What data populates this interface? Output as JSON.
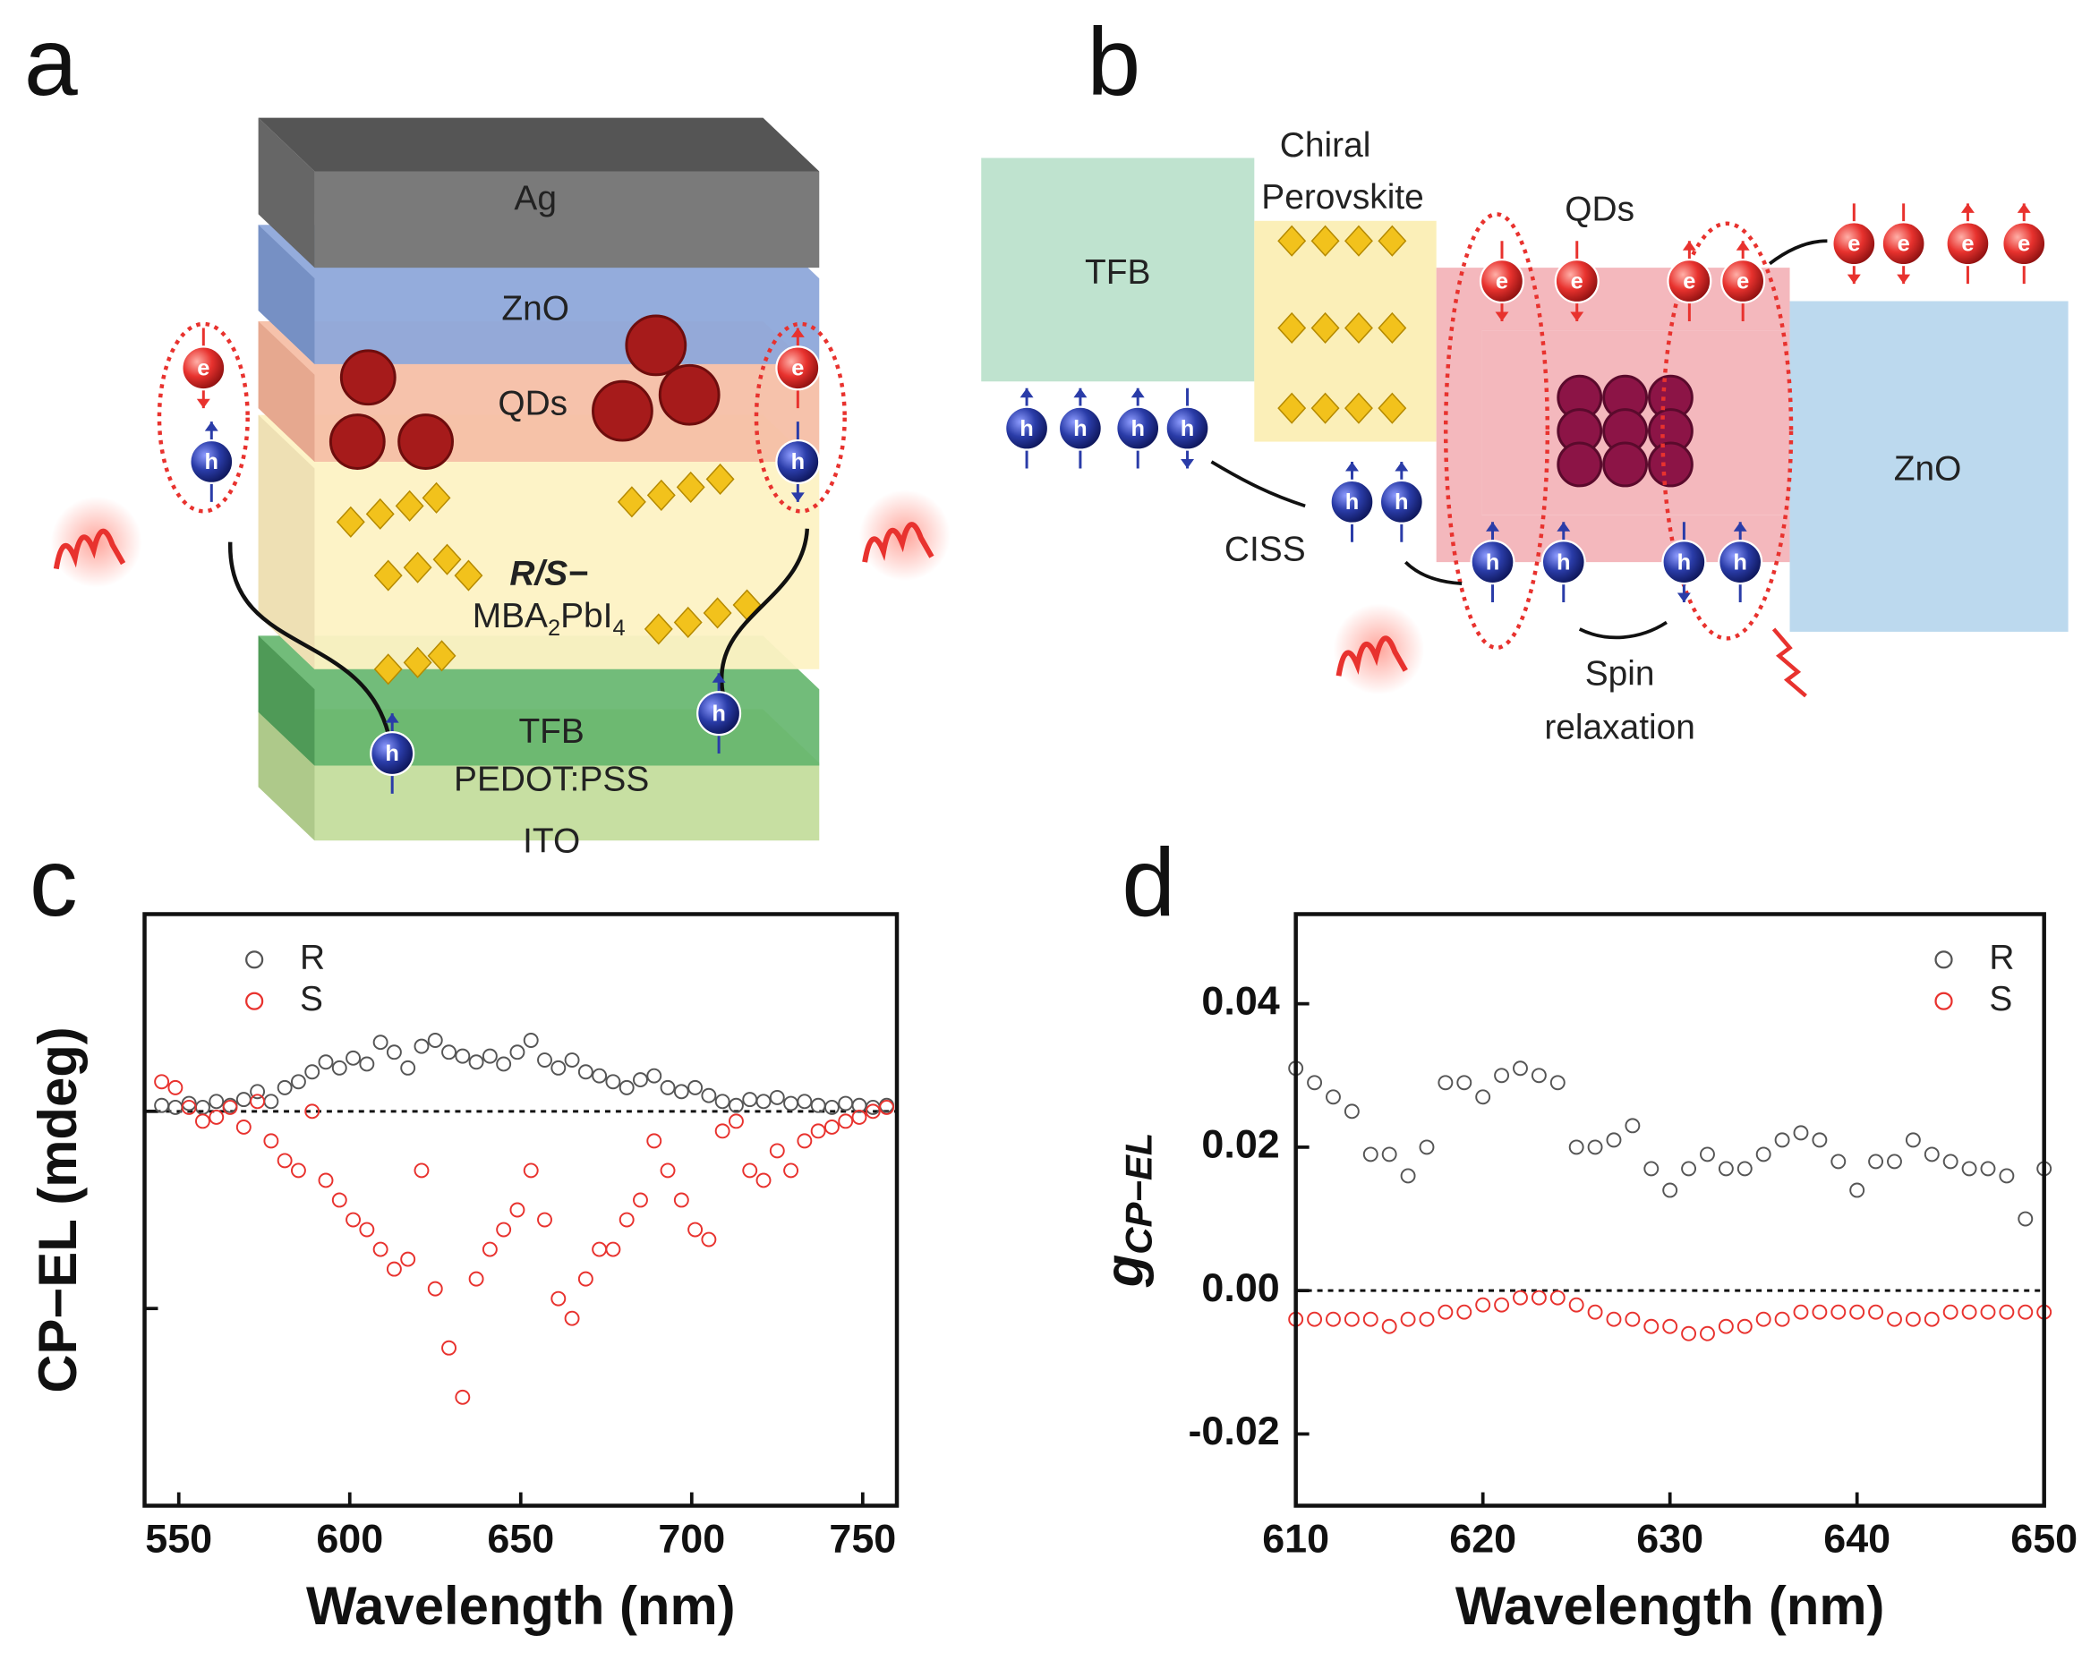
{
  "diagram_a": {
    "panel_label": "a",
    "layers": [
      "Ag",
      "ZnO",
      "QDs",
      "TFB",
      "PEDOT:PSS",
      "ITO"
    ],
    "chiral_label": "R/S−",
    "formula": [
      "MBA",
      "2",
      "PbI",
      "4"
    ],
    "electron_label": "e",
    "hole_label": "h"
  },
  "diagram_b": {
    "panel_label": "b",
    "tfb": "TFB",
    "perovskite": [
      "Chiral",
      "Perovskite"
    ],
    "qds": "QDs",
    "zno": "ZnO",
    "ciss": "CISS",
    "spin": [
      "Spin",
      "relaxation"
    ],
    "electron_label": "e",
    "hole_label": "h"
  },
  "chart_data": [
    {
      "type": "scatter",
      "panel_label": "c",
      "xlabel": "Wavelength (nm)",
      "ylabel": "CP−EL (mdeg)",
      "xlim": [
        540,
        760
      ],
      "xticks": [
        550,
        600,
        650,
        700,
        750
      ],
      "ylim": [
        -2,
        1
      ],
      "yticks": [
        -1,
        0
      ],
      "ytick_labels": false,
      "reference_line": 0,
      "legend": "upper left",
      "x": [
        545,
        549,
        553,
        557,
        561,
        565,
        569,
        573,
        577,
        581,
        585,
        589,
        593,
        597,
        601,
        605,
        609,
        613,
        617,
        621,
        625,
        629,
        633,
        637,
        641,
        645,
        649,
        653,
        657,
        661,
        665,
        669,
        673,
        677,
        681,
        685,
        689,
        693,
        697,
        701,
        705,
        709,
        713,
        717,
        721,
        725,
        729,
        733,
        737,
        741,
        745,
        749,
        753,
        757
      ],
      "series": [
        {
          "name": "R",
          "color": "#555555",
          "values": [
            0.03,
            0.02,
            0.04,
            0.02,
            0.05,
            0.03,
            0.06,
            0.1,
            0.05,
            0.12,
            0.15,
            0.2,
            0.25,
            0.22,
            0.27,
            0.24,
            0.35,
            0.3,
            0.22,
            0.33,
            0.36,
            0.3,
            0.28,
            0.25,
            0.28,
            0.24,
            0.3,
            0.36,
            0.26,
            0.22,
            0.26,
            0.2,
            0.18,
            0.15,
            0.12,
            0.16,
            0.18,
            0.12,
            0.1,
            0.12,
            0.08,
            0.05,
            0.03,
            0.06,
            0.05,
            0.07,
            0.04,
            0.05,
            0.03,
            0.02,
            0.04,
            0.03,
            0.02,
            0.03
          ]
        },
        {
          "name": "S",
          "color": "#e8322e",
          "values": [
            0.15,
            0.12,
            0.02,
            -0.05,
            -0.03,
            0.02,
            -0.08,
            0.05,
            -0.15,
            -0.25,
            -0.3,
            0.0,
            -0.35,
            -0.45,
            -0.55,
            -0.6,
            -0.7,
            -0.8,
            -0.75,
            -0.3,
            -0.9,
            -1.2,
            -1.45,
            -0.85,
            -0.7,
            -0.6,
            -0.5,
            -0.3,
            -0.55,
            -0.95,
            -1.05,
            -0.85,
            -0.7,
            -0.7,
            -0.55,
            -0.45,
            -0.15,
            -0.3,
            -0.45,
            -0.6,
            -0.65,
            -0.1,
            -0.05,
            -0.3,
            -0.35,
            -0.2,
            -0.3,
            -0.15,
            -0.1,
            -0.08,
            -0.05,
            -0.03,
            0.0,
            0.02
          ]
        }
      ]
    },
    {
      "type": "scatter",
      "panel_label": "d",
      "xlabel": "Wavelength (nm)",
      "ylabel": "g",
      "ylabel_sub": "CP−EL",
      "xlim": [
        610,
        650
      ],
      "xticks": [
        610,
        620,
        630,
        640,
        650
      ],
      "ylim": [
        -0.03,
        0.0525
      ],
      "yticks": [
        -0.02,
        {
          "value": 0,
          "label": "0.00"
        },
        0.02,
        0.04
      ],
      "reference_line": 0,
      "legend": "upper right",
      "x": [
        610,
        611,
        612,
        613,
        614,
        615,
        616,
        617,
        618,
        619,
        620,
        621,
        622,
        623,
        624,
        625,
        626,
        627,
        628,
        629,
        630,
        631,
        632,
        633,
        634,
        635,
        636,
        637,
        638,
        639,
        640,
        641,
        642,
        643,
        644,
        645,
        646,
        647,
        648,
        649,
        650
      ],
      "series": [
        {
          "name": "R",
          "color": "#555555",
          "values": [
            0.031,
            0.029,
            0.027,
            0.025,
            0.019,
            0.019,
            0.016,
            0.02,
            0.029,
            0.029,
            0.027,
            0.03,
            0.031,
            0.03,
            0.029,
            0.02,
            0.02,
            0.021,
            0.023,
            0.017,
            0.014,
            0.017,
            0.019,
            0.017,
            0.017,
            0.019,
            0.021,
            0.022,
            0.021,
            0.018,
            0.014,
            0.018,
            0.018,
            0.021,
            0.019,
            0.018,
            0.017,
            0.017,
            0.016,
            0.01,
            0.017
          ]
        },
        {
          "name": "S",
          "color": "#e8322e",
          "values": [
            -0.004,
            -0.004,
            -0.004,
            -0.004,
            -0.004,
            -0.005,
            -0.004,
            -0.004,
            -0.003,
            -0.003,
            -0.002,
            -0.002,
            -0.001,
            -0.001,
            -0.001,
            -0.002,
            -0.003,
            -0.004,
            -0.004,
            -0.005,
            -0.005,
            -0.006,
            -0.006,
            -0.005,
            -0.005,
            -0.004,
            -0.004,
            -0.003,
            -0.003,
            -0.003,
            -0.003,
            -0.003,
            -0.004,
            -0.004,
            -0.004,
            -0.003,
            -0.003,
            -0.003,
            -0.003,
            -0.003,
            -0.003
          ]
        }
      ]
    }
  ]
}
